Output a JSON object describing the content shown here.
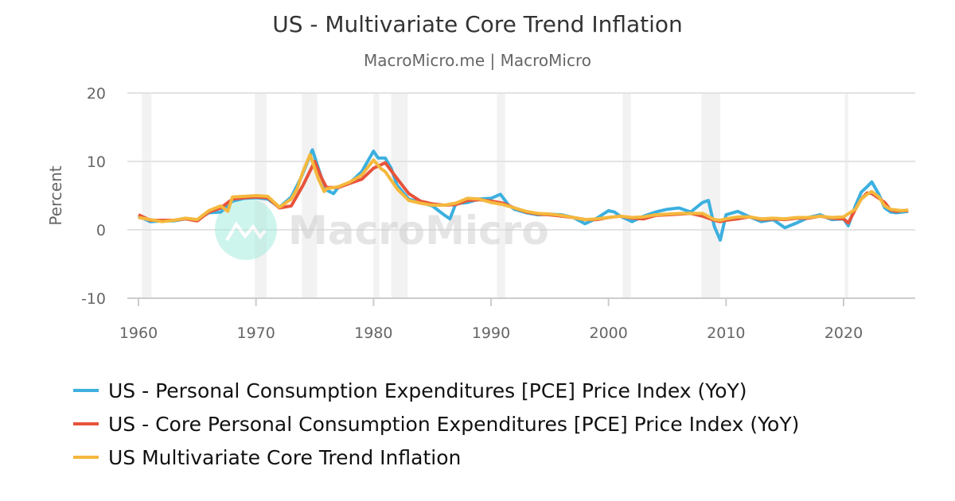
{
  "chart_data": {
    "type": "line",
    "title": "US - Multivariate Core Trend Inflation",
    "subtitle": "MacroMicro.me | MacroMicro",
    "watermark": "MacroMicro",
    "ylabel": "Percent",
    "xlabel": "",
    "ylim": [
      -10,
      20
    ],
    "xlim": [
      1960,
      2026
    ],
    "yticks": [
      "20",
      "10",
      "0",
      "-10"
    ],
    "xticks": [
      "1960",
      "1970",
      "1980",
      "1990",
      "2000",
      "2010",
      "2020"
    ],
    "grid": true,
    "legend_position": "bottom",
    "recessions": [
      [
        1960.3,
        1961.1
      ],
      [
        1969.9,
        1970.9
      ],
      [
        1973.9,
        1975.2
      ],
      [
        1980.0,
        1980.5
      ],
      [
        1981.5,
        1982.9
      ],
      [
        1990.5,
        1991.2
      ],
      [
        2001.2,
        2001.9
      ],
      [
        2007.9,
        2009.5
      ],
      [
        2020.1,
        2020.4
      ]
    ],
    "series": [
      {
        "name": "US - Personal Consumption Expenditures [PCE] Price Index (YoY)",
        "color": "#3cb0df",
        "x": [
          1960,
          1961,
          1962,
          1963,
          1964,
          1965,
          1966,
          1967,
          1968,
          1969,
          1970,
          1971,
          1972,
          1973,
          1973.8,
          1974.8,
          1975.5,
          1976,
          1976.6,
          1977,
          1978,
          1979,
          1980,
          1980.4,
          1981,
          1981.5,
          1982,
          1983,
          1984,
          1985,
          1986,
          1986.5,
          1987,
          1988,
          1989,
          1990,
          1990.8,
          1991.5,
          1992,
          1993,
          1994,
          1995,
          1996,
          1997,
          1998,
          1999,
          2000,
          2000.5,
          2001,
          2002,
          2003,
          2004,
          2005,
          2006,
          2007,
          2008,
          2008.5,
          2009,
          2009.5,
          2010,
          2011,
          2012,
          2013,
          2014,
          2015,
          2016,
          2017,
          2018,
          2019,
          2020,
          2020.4,
          2021,
          2021.5,
          2022,
          2022.4,
          2023,
          2023.5,
          2024,
          2024.5,
          2025,
          2025.5
        ],
        "y": [
          2.0,
          1.2,
          1.3,
          1.3,
          1.6,
          1.5,
          2.5,
          2.6,
          4.2,
          4.6,
          4.7,
          4.5,
          3.3,
          4.8,
          7.5,
          11.7,
          8.0,
          5.8,
          5.3,
          6.2,
          6.9,
          8.5,
          11.5,
          10.5,
          10.5,
          9.0,
          6.5,
          4.5,
          4.0,
          3.5,
          2.2,
          1.6,
          3.8,
          4.0,
          4.5,
          4.6,
          5.2,
          3.6,
          3.0,
          2.5,
          2.2,
          2.3,
          2.2,
          1.8,
          0.9,
          1.7,
          2.8,
          2.6,
          2.0,
          1.2,
          2.0,
          2.6,
          3.0,
          3.2,
          2.6,
          4.0,
          4.3,
          0.5,
          -1.5,
          2.2,
          2.7,
          1.9,
          1.2,
          1.5,
          0.3,
          1.0,
          1.8,
          2.2,
          1.5,
          1.6,
          0.6,
          3.5,
          5.5,
          6.3,
          7.0,
          5.2,
          3.2,
          2.6,
          2.5,
          2.6,
          2.7
        ]
      },
      {
        "name": "US - Core Personal Consumption Expenditures [PCE] Price Index (YoY)",
        "color": "#e8533a",
        "x": [
          1960,
          1961,
          1962,
          1963,
          1964,
          1965,
          1966,
          1967,
          1968,
          1969,
          1970,
          1971,
          1972,
          1973,
          1974,
          1975,
          1975.6,
          1976,
          1977,
          1978,
          1979,
          1980,
          1981,
          1982,
          1983,
          1984,
          1985,
          1986,
          1987,
          1988,
          1989,
          1990,
          1991,
          1992,
          1993,
          1994,
          1995,
          1996,
          1997,
          1998,
          1999,
          2000,
          2001,
          2002,
          2003,
          2004,
          2005,
          2006,
          2007,
          2008,
          2009,
          2009.5,
          2010,
          2011,
          2012,
          2013,
          2014,
          2015,
          2016,
          2017,
          2018,
          2019,
          2020,
          2020.4,
          2021,
          2021.5,
          2022,
          2022.4,
          2023,
          2023.5,
          2024,
          2024.5,
          2025,
          2025.5
        ],
        "y": [
          2.2,
          1.4,
          1.4,
          1.4,
          1.6,
          1.3,
          2.6,
          3.2,
          4.5,
          4.7,
          4.8,
          4.7,
          3.2,
          3.5,
          6.5,
          10.0,
          7.5,
          6.2,
          6.2,
          6.8,
          7.4,
          9.0,
          9.8,
          7.5,
          5.3,
          4.2,
          3.8,
          3.6,
          3.7,
          4.3,
          4.4,
          4.2,
          3.9,
          3.2,
          2.6,
          2.3,
          2.2,
          2.0,
          1.8,
          1.5,
          1.5,
          1.8,
          2.0,
          1.7,
          1.6,
          2.1,
          2.2,
          2.3,
          2.4,
          2.0,
          1.4,
          1.2,
          1.4,
          1.6,
          1.9,
          1.5,
          1.6,
          1.5,
          1.7,
          1.7,
          2.0,
          1.7,
          1.6,
          1.0,
          3.0,
          4.5,
          5.4,
          5.3,
          4.6,
          4.0,
          2.9,
          2.7,
          2.8,
          2.8
        ]
      },
      {
        "name": "US Multivariate Core Trend Inflation",
        "color": "#f5b83d",
        "x": [
          1960,
          1961,
          1962,
          1963,
          1964,
          1965,
          1966,
          1967,
          1967.6,
          1968,
          1969,
          1970,
          1971,
          1972,
          1973,
          1973.5,
          1974,
          1974.6,
          1975.3,
          1975.8,
          1976,
          1977,
          1978,
          1979,
          1980,
          1980.6,
          1981,
          1982,
          1983,
          1984,
          1985,
          1986,
          1987,
          1988,
          1989,
          1990,
          1991,
          1992,
          1993,
          1994,
          1995,
          1996,
          1997,
          1998,
          1999,
          2000,
          2001,
          2002,
          2003,
          2004,
          2005,
          2006,
          2007,
          2008,
          2009,
          2009.5,
          2010,
          2011,
          2012,
          2013,
          2014,
          2015,
          2016,
          2017,
          2018,
          2019,
          2020,
          2021,
          2021.5,
          2022,
          2022.4,
          2023,
          2023.5,
          2024,
          2024.5,
          2025,
          2025.5
        ],
        "y": [
          1.8,
          1.5,
          1.2,
          1.4,
          1.7,
          1.5,
          2.8,
          3.5,
          2.7,
          4.8,
          4.9,
          5.0,
          4.9,
          3.3,
          4.5,
          6.0,
          8.5,
          11.0,
          7.5,
          5.6,
          6.0,
          6.3,
          7.0,
          8.0,
          10.2,
          9.0,
          8.5,
          6.0,
          4.3,
          3.9,
          3.6,
          3.6,
          3.9,
          4.6,
          4.5,
          4.0,
          3.7,
          3.2,
          2.7,
          2.4,
          2.3,
          2.1,
          1.8,
          1.5,
          1.6,
          1.8,
          2.0,
          1.8,
          1.9,
          2.2,
          2.3,
          2.4,
          2.4,
          2.4,
          1.5,
          1.4,
          1.6,
          1.9,
          1.9,
          1.6,
          1.7,
          1.6,
          1.8,
          1.8,
          2.0,
          1.8,
          1.9,
          3.0,
          4.5,
          5.2,
          5.6,
          4.8,
          3.5,
          3.0,
          2.9,
          2.8,
          2.9
        ]
      }
    ]
  }
}
